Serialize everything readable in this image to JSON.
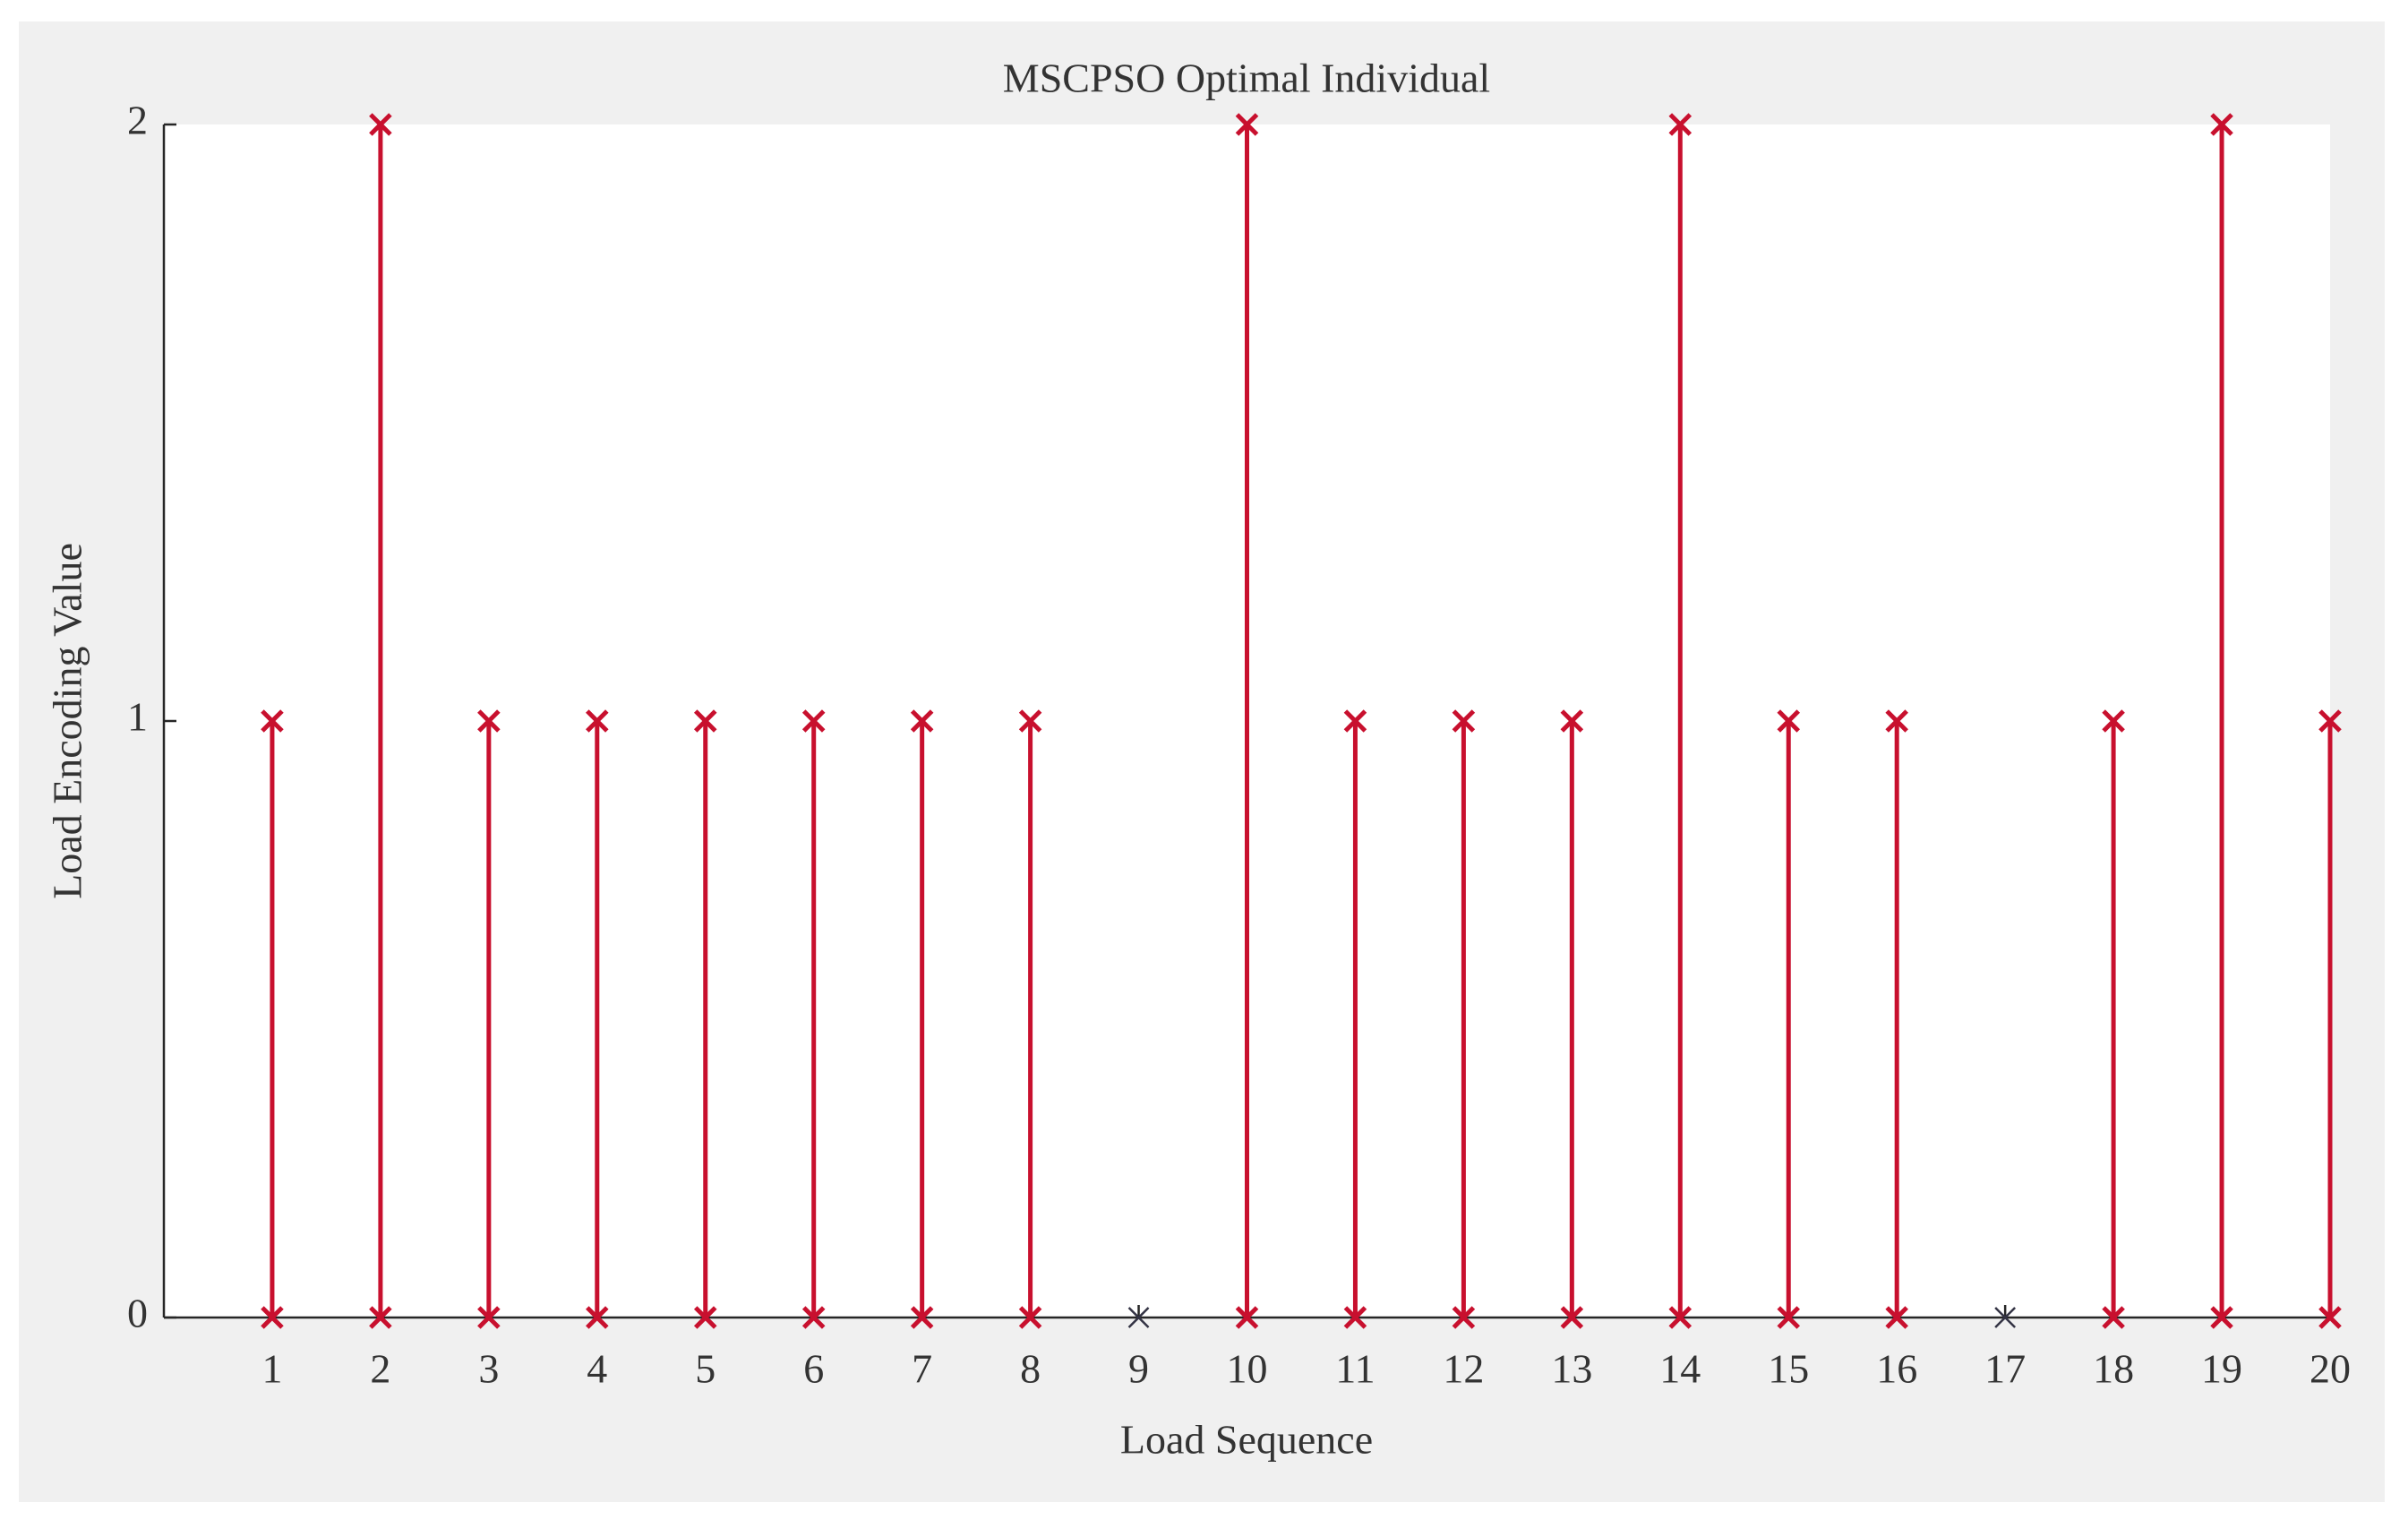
{
  "chart_data": {
    "type": "stem",
    "title": "MSCPSO Optimal Individual",
    "x_label": "Load Sequence",
    "y_label": "Load Encoding Value",
    "x": [
      1,
      2,
      3,
      4,
      5,
      6,
      7,
      8,
      9,
      10,
      11,
      12,
      13,
      14,
      15,
      16,
      17,
      18,
      19,
      20
    ],
    "values": [
      1,
      2,
      1,
      1,
      1,
      1,
      1,
      1,
      0,
      2,
      1,
      1,
      1,
      2,
      1,
      1,
      0,
      1,
      2,
      1
    ],
    "color": "#c8102e",
    "xlim": [
      0,
      20
    ],
    "xticks": [
      1,
      2,
      3,
      4,
      5,
      6,
      7,
      8,
      9,
      10,
      11,
      12,
      13,
      14,
      15,
      16,
      17,
      18,
      19,
      20
    ],
    "ylim": [
      0,
      2
    ],
    "yticks": [
      0,
      1,
      2
    ],
    "grid": false
  }
}
